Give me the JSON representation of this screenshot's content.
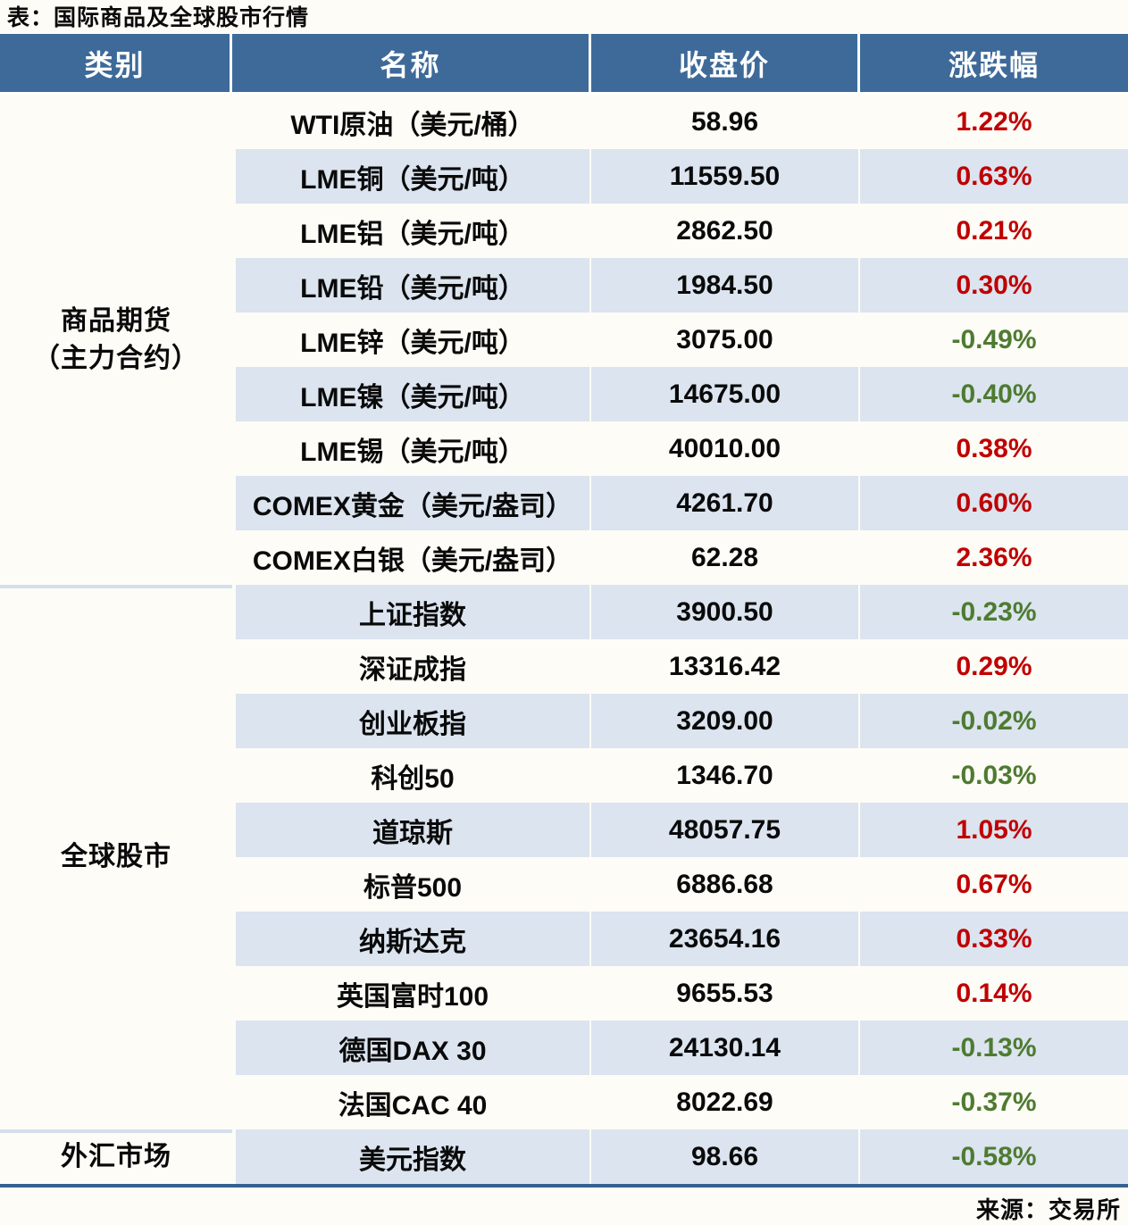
{
  "title": "表：国际商品及全球股市行情",
  "columns": [
    "类别",
    "名称",
    "收盘价",
    "涨跌幅"
  ],
  "sections": [
    {
      "category_lines": [
        "商品期货",
        "（主力合约）"
      ],
      "rows": [
        {
          "name": "WTI原油（美元/桶）",
          "close": "58.96",
          "change": "1.22%",
          "direction": "up"
        },
        {
          "name": "LME铜（美元/吨）",
          "close": "11559.50",
          "change": "0.63%",
          "direction": "up"
        },
        {
          "name": "LME铝（美元/吨）",
          "close": "2862.50",
          "change": "0.21%",
          "direction": "up"
        },
        {
          "name": "LME铅（美元/吨）",
          "close": "1984.50",
          "change": "0.30%",
          "direction": "up"
        },
        {
          "name": "LME锌（美元/吨）",
          "close": "3075.00",
          "change": "-0.49%",
          "direction": "down"
        },
        {
          "name": "LME镍（美元/吨）",
          "close": "14675.00",
          "change": "-0.40%",
          "direction": "down"
        },
        {
          "name": "LME锡（美元/吨）",
          "close": "40010.00",
          "change": "0.38%",
          "direction": "up"
        },
        {
          "name": "COMEX黄金（美元/盎司）",
          "close": "4261.70",
          "change": "0.60%",
          "direction": "up"
        },
        {
          "name": "COMEX白银（美元/盎司）",
          "close": "62.28",
          "change": "2.36%",
          "direction": "up"
        }
      ]
    },
    {
      "category_lines": [
        "全球股市"
      ],
      "rows": [
        {
          "name": "上证指数",
          "close": "3900.50",
          "change": "-0.23%",
          "direction": "down"
        },
        {
          "name": "深证成指",
          "close": "13316.42",
          "change": "0.29%",
          "direction": "up"
        },
        {
          "name": "创业板指",
          "close": "3209.00",
          "change": "-0.02%",
          "direction": "down"
        },
        {
          "name": "科创50",
          "close": "1346.70",
          "change": "-0.03%",
          "direction": "down"
        },
        {
          "name": "道琼斯",
          "close": "48057.75",
          "change": "1.05%",
          "direction": "up"
        },
        {
          "name": "标普500",
          "close": "6886.68",
          "change": "0.67%",
          "direction": "up"
        },
        {
          "name": "纳斯达克",
          "close": "23654.16",
          "change": "0.33%",
          "direction": "up"
        },
        {
          "name": "英国富时100",
          "close": "9655.53",
          "change": "0.14%",
          "direction": "up"
        },
        {
          "name": "德国DAX 30",
          "close": "24130.14",
          "change": "-0.13%",
          "direction": "down"
        },
        {
          "name": "法国CAC 40",
          "close": "8022.69",
          "change": "-0.37%",
          "direction": "down"
        }
      ]
    },
    {
      "category_lines": [
        "外汇市场"
      ],
      "rows": [
        {
          "name": "美元指数",
          "close": "98.66",
          "change": "-0.58%",
          "direction": "down"
        }
      ]
    }
  ],
  "footer": {
    "source": "来源：交易所"
  },
  "colors": {
    "header_bg": "#3E6A99",
    "frame": "#35618E",
    "row_alt": "#DBE4EF",
    "page_bg": "#FDFCF6",
    "up_red": "#C00000",
    "down_green": "#4E7B31",
    "divider": "#D3DFEC"
  },
  "chart_data": {
    "type": "table",
    "title": "表：国际商品及全球股市行情",
    "columns": [
      "类别",
      "名称",
      "收盘价",
      "涨跌幅"
    ],
    "rows": [
      [
        "商品期货（主力合约）",
        "WTI原油（美元/桶）",
        58.96,
        "1.22%"
      ],
      [
        "商品期货（主力合约）",
        "LME铜（美元/吨）",
        11559.5,
        "0.63%"
      ],
      [
        "商品期货（主力合约）",
        "LME铝（美元/吨）",
        2862.5,
        "0.21%"
      ],
      [
        "商品期货（主力合约）",
        "LME铅（美元/吨）",
        1984.5,
        "0.30%"
      ],
      [
        "商品期货（主力合约）",
        "LME锌（美元/吨）",
        3075.0,
        "-0.49%"
      ],
      [
        "商品期货（主力合约）",
        "LME镍（美元/吨）",
        14675.0,
        "-0.40%"
      ],
      [
        "商品期货（主力合约）",
        "LME锡（美元/吨）",
        40010.0,
        "0.38%"
      ],
      [
        "商品期货（主力合约）",
        "COMEX黄金（美元/盎司）",
        4261.7,
        "0.60%"
      ],
      [
        "商品期货（主力合约）",
        "COMEX白银（美元/盎司）",
        62.28,
        "2.36%"
      ],
      [
        "全球股市",
        "上证指数",
        3900.5,
        "-0.23%"
      ],
      [
        "全球股市",
        "深证成指",
        13316.42,
        "0.29%"
      ],
      [
        "全球股市",
        "创业板指",
        3209.0,
        "-0.02%"
      ],
      [
        "全球股市",
        "科创50",
        1346.7,
        "-0.03%"
      ],
      [
        "全球股市",
        "道琼斯",
        48057.75,
        "1.05%"
      ],
      [
        "全球股市",
        "标普500",
        6886.68,
        "0.67%"
      ],
      [
        "全球股市",
        "纳斯达克",
        23654.16,
        "0.33%"
      ],
      [
        "全球股市",
        "英国富时100",
        9655.53,
        "0.14%"
      ],
      [
        "全球股市",
        "德国DAX 30",
        24130.14,
        "-0.13%"
      ],
      [
        "全球股市",
        "法国CAC 40",
        8022.69,
        "-0.37%"
      ],
      [
        "外汇市场",
        "美元指数",
        98.66,
        "-0.58%"
      ]
    ],
    "notes": "红色=上涨, 绿色=下跌; 来源：交易所"
  }
}
